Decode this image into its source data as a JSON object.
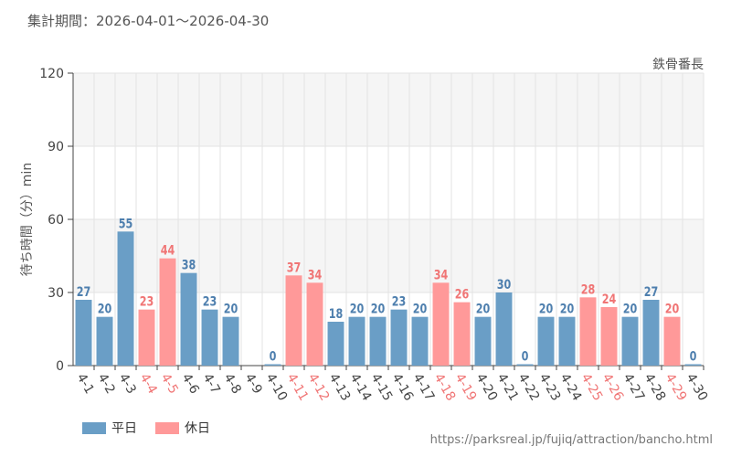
{
  "header": {
    "period_label": "集計期間：2026-04-01～2026-04-30",
    "attraction": "鉄骨番長"
  },
  "legend": {
    "weekday": "平日",
    "holiday": "休日"
  },
  "source_url": "https://parksreal.jp/fujiq/attraction/bancho.html",
  "colors": {
    "weekday": "#6a9ec6",
    "holiday": "#ff9999",
    "weekday_label": "#4e7fae",
    "holiday_label": "#f07575",
    "band": "#f5f5f5",
    "grid": "#e3e3e3"
  },
  "chart_data": {
    "type": "bar",
    "title": "",
    "xlabel": "",
    "ylabel": "待ち時間（分）min",
    "ylim": [
      0,
      120
    ],
    "yticks": [
      0,
      30,
      60,
      90,
      120
    ],
    "categories": [
      "4-1",
      "4-2",
      "4-3",
      "4-4",
      "4-5",
      "4-6",
      "4-7",
      "4-8",
      "4-9",
      "4-10",
      "4-11",
      "4-12",
      "4-13",
      "4-14",
      "4-15",
      "4-16",
      "4-17",
      "4-18",
      "4-19",
      "4-20",
      "4-21",
      "4-22",
      "4-23",
      "4-24",
      "4-25",
      "4-26",
      "4-27",
      "4-28",
      "4-29",
      "4-30"
    ],
    "values": [
      27,
      20,
      55,
      23,
      44,
      38,
      23,
      20,
      null,
      0,
      37,
      34,
      18,
      20,
      20,
      23,
      20,
      34,
      26,
      20,
      30,
      0,
      20,
      20,
      28,
      24,
      20,
      27,
      20,
      0
    ],
    "day_type": [
      "weekday",
      "weekday",
      "weekday",
      "holiday",
      "holiday",
      "weekday",
      "weekday",
      "weekday",
      "weekday",
      "weekday",
      "holiday",
      "holiday",
      "weekday",
      "weekday",
      "weekday",
      "weekday",
      "weekday",
      "holiday",
      "holiday",
      "weekday",
      "weekday",
      "weekday",
      "weekday",
      "weekday",
      "holiday",
      "holiday",
      "weekday",
      "weekday",
      "holiday",
      "weekday"
    ],
    "series": [
      {
        "name": "平日"
      },
      {
        "name": "休日"
      }
    ],
    "grid": true,
    "legend_position": "bottom-left"
  }
}
